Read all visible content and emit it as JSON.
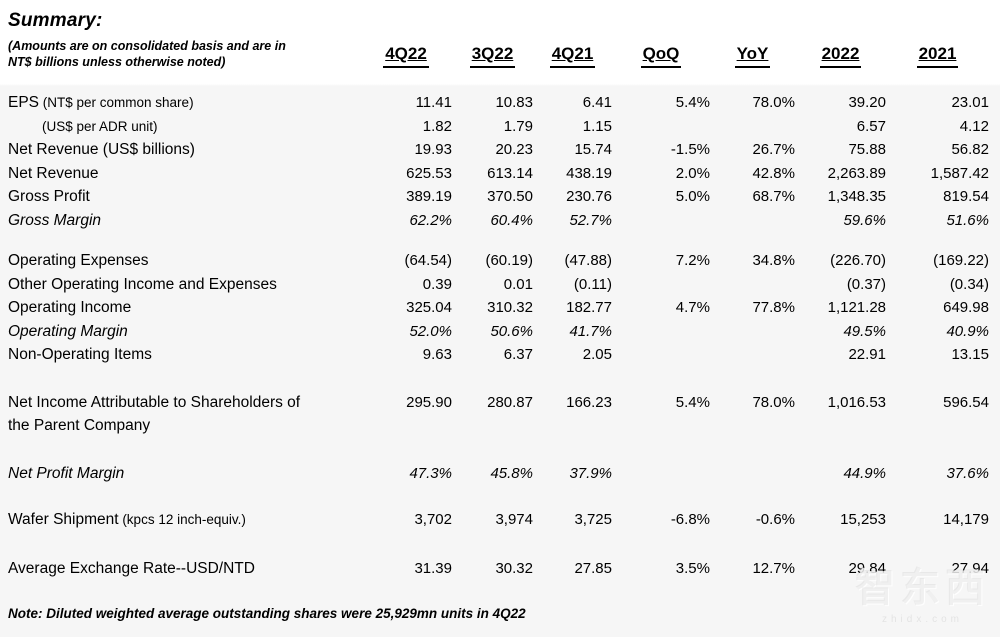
{
  "page": {
    "title": "Summary:",
    "subtitle": [
      "(Amounts are on consolidated basis and are in",
      "NT$ billions unless otherwise noted)"
    ],
    "note": "Note: Diluted weighted average outstanding shares were 25,929mn units in 4Q22",
    "watermark": {
      "text": "智东西",
      "subtext": "zhidx.com"
    }
  },
  "table": {
    "columns": [
      "4Q22",
      "3Q22",
      "4Q21",
      "QoQ",
      "YoY",
      "2022",
      "2021"
    ],
    "rows": [
      {
        "label": "EPS",
        "note": "(NT$ per common share)",
        "values": [
          "11.41",
          "10.83",
          "6.41",
          "5.4%",
          "78.0%",
          "39.20",
          "23.01"
        ]
      },
      {
        "note": "(US$ per ADR unit)",
        "indent": true,
        "values": [
          "1.82",
          "1.79",
          "1.15",
          "",
          "",
          "6.57",
          "4.12"
        ]
      },
      {
        "label": "Net Revenue (US$ billions)",
        "values": [
          "19.93",
          "20.23",
          "15.74",
          "-1.5%",
          "26.7%",
          "75.88",
          "56.82"
        ]
      },
      {
        "label": "Net Revenue",
        "values": [
          "625.53",
          "613.14",
          "438.19",
          "2.0%",
          "42.8%",
          "2,263.89",
          "1,587.42"
        ]
      },
      {
        "label": "Gross Profit",
        "values": [
          "389.19",
          "370.50",
          "230.76",
          "5.0%",
          "68.7%",
          "1,348.35",
          "819.54"
        ]
      },
      {
        "label": "Gross Margin",
        "italic": true,
        "values": [
          "62.2%",
          "60.4%",
          "52.7%",
          "",
          "",
          "59.6%",
          "51.6%"
        ]
      },
      {
        "label": "Operating Expenses",
        "gap": 17,
        "values": [
          "(64.54)",
          "(60.19)",
          "(47.88)",
          "7.2%",
          "34.8%",
          "(226.70)",
          "(169.22)"
        ]
      },
      {
        "label": "Other Operating Income and Expenses",
        "values": [
          "0.39",
          "0.01",
          "(0.11)",
          "",
          "",
          "(0.37)",
          "(0.34)"
        ]
      },
      {
        "label": "Operating Income",
        "values": [
          "325.04",
          "310.32",
          "182.77",
          "4.7%",
          "77.8%",
          "1,121.28",
          "649.98"
        ]
      },
      {
        "label": "Operating Margin",
        "italic": true,
        "values": [
          "52.0%",
          "50.6%",
          "41.7%",
          "",
          "",
          "49.5%",
          "40.9%"
        ]
      },
      {
        "label": "Non-Operating Items",
        "values": [
          "9.63",
          "6.37",
          "2.05",
          "",
          "",
          "22.91",
          "13.15"
        ]
      },
      {
        "label": "Net Income Attributable to Shareholders of",
        "label2": "the Parent Company",
        "gap": 24,
        "values": [
          "295.90",
          "280.87",
          "166.23",
          "5.4%",
          "78.0%",
          "1,016.53",
          "596.54"
        ]
      },
      {
        "label": "Net Profit Margin",
        "italic": true,
        "gap": 24,
        "values": [
          "47.3%",
          "45.8%",
          "37.9%",
          "",
          "",
          "44.9%",
          "37.6%"
        ]
      },
      {
        "label": "Wafer Shipment",
        "note": "(kpcs 12 inch-equiv.)",
        "gap": 23,
        "values": [
          "3,702",
          "3,974",
          "3,725",
          "-6.8%",
          "-0.6%",
          "15,253",
          "14,179"
        ]
      },
      {
        "label": "Average Exchange Rate--USD/NTD",
        "gap": 25,
        "values": [
          "31.39",
          "30.32",
          "27.85",
          "3.5%",
          "12.7%",
          "29.84",
          "27.94"
        ]
      }
    ]
  }
}
